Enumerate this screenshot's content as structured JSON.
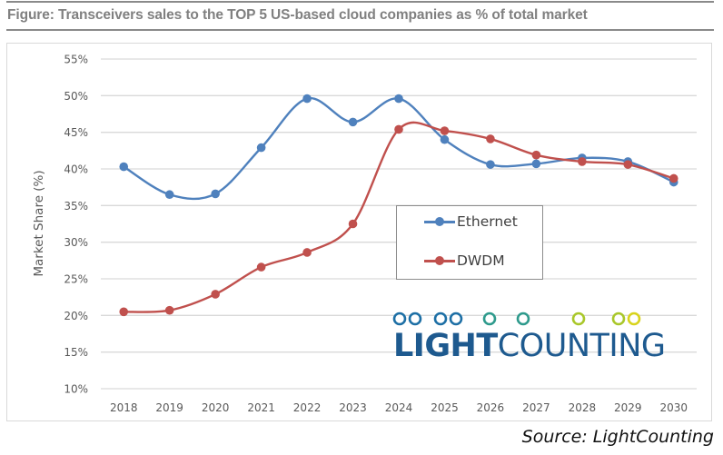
{
  "figure": {
    "title": "Figure: Transceivers sales to the TOP 5 US-based cloud companies as % of total market",
    "source": "Source: LightCounting"
  },
  "logo": {
    "text_bold": "LIGHT",
    "text_regular": "COUNTING",
    "gradient_colors": [
      "#1d6fa5",
      "#2e9a8c",
      "#5aac45",
      "#c9d11f",
      "#f0e21a"
    ]
  },
  "chart_data": {
    "type": "line",
    "title": "Transceivers sales to the TOP 5 US-based cloud companies as % of total market",
    "xlabel": "",
    "ylabel": "Market Share (%)",
    "categories": [
      "2018",
      "2019",
      "2020",
      "2021",
      "2022",
      "2023",
      "2024",
      "2025",
      "2026",
      "2027",
      "2028",
      "2029",
      "2030"
    ],
    "ylim": [
      10,
      55
    ],
    "yticks": [
      10,
      15,
      20,
      25,
      30,
      35,
      40,
      45,
      50,
      55
    ],
    "ytick_labels": [
      "10%",
      "15%",
      "20%",
      "25%",
      "30%",
      "35%",
      "40%",
      "45%",
      "50%",
      "55%"
    ],
    "grid": true,
    "smooth": true,
    "legend_position": "center",
    "series": [
      {
        "name": "Ethernet",
        "color": "#4f81bd",
        "values": [
          40.3,
          36.5,
          36.6,
          42.9,
          49.6,
          46.4,
          49.6,
          44.0,
          40.6,
          40.7,
          41.5,
          41.0,
          38.2
        ]
      },
      {
        "name": "DWDM",
        "color": "#c0504d",
        "values": [
          20.5,
          20.7,
          22.9,
          26.6,
          28.6,
          32.5,
          45.4,
          45.2,
          44.1,
          41.9,
          41.0,
          40.6,
          38.7
        ]
      }
    ]
  }
}
